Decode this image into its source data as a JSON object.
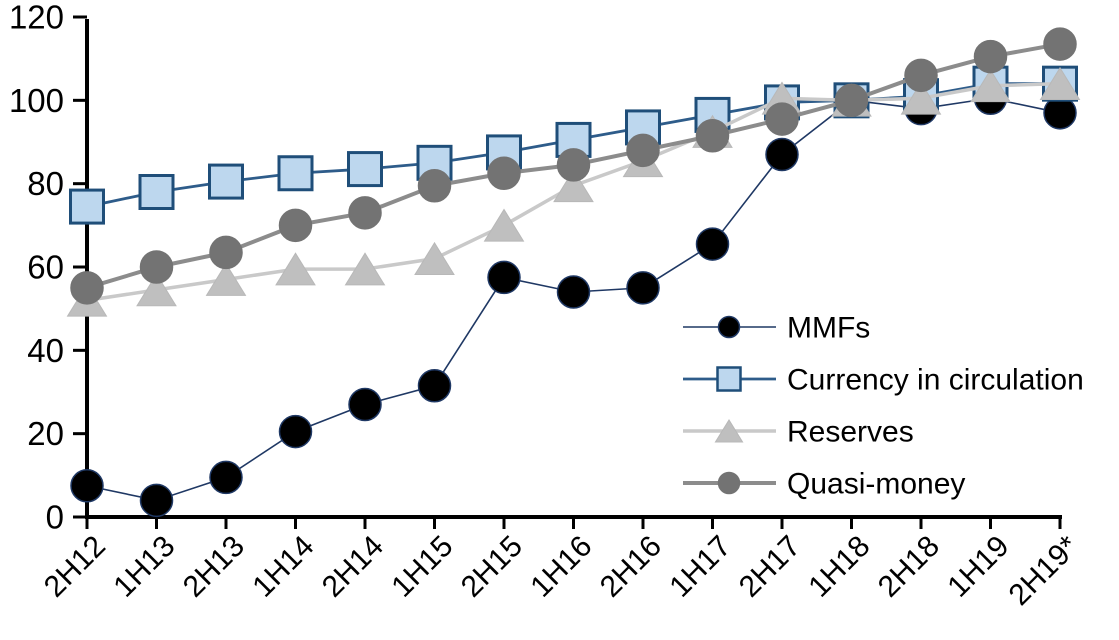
{
  "chart_data": {
    "type": "line",
    "title": "",
    "xlabel": "",
    "ylabel": "",
    "grid": "off",
    "background": "#FFFFFF",
    "axis_color": "#000000",
    "ylim": [
      0,
      120
    ],
    "ytick_step": 20,
    "y_tick_labels": [
      "0",
      "20",
      "40",
      "60",
      "80",
      "100",
      "120"
    ],
    "categories": [
      "2H12",
      "1H13",
      "2H13",
      "1H14",
      "2H14",
      "1H15",
      "2H15",
      "1H16",
      "2H16",
      "1H17",
      "2H17",
      "1H18",
      "2H18",
      "1H19",
      "2H19*"
    ],
    "legend_position": "inside-right",
    "series": [
      {
        "name": "MMFs",
        "marker": "circle",
        "marker_fill": "#000000",
        "marker_stroke": "#1F3864",
        "line_color": "#1F3864",
        "line_width": 1.6,
        "values": [
          7.5,
          4,
          9.5,
          20.5,
          27,
          31.5,
          57.5,
          54,
          55,
          65.5,
          87,
          100,
          98,
          100.5,
          97
        ]
      },
      {
        "name": "Currency in circulation",
        "marker": "square",
        "marker_fill": "#BDD7EE",
        "marker_stroke": "#1F4E79",
        "line_color": "#2E5C8A",
        "line_width": 2.8,
        "values": [
          74.5,
          78,
          80.5,
          82.5,
          83.5,
          85,
          87.5,
          90.5,
          93.5,
          96.5,
          99.5,
          100,
          101,
          104,
          104
        ]
      },
      {
        "name": "Reserves",
        "marker": "triangle",
        "marker_fill": "#BFBFBF",
        "marker_stroke": "#B8B8B8",
        "line_color": "#C9C9C9",
        "line_width": 3.5,
        "values": [
          52,
          54.5,
          57,
          59.5,
          59.5,
          62,
          70,
          79.5,
          85.5,
          92.5,
          100.5,
          100,
          100.5,
          103.5,
          104
        ]
      },
      {
        "name": "Quasi-money",
        "marker": "circle",
        "marker_fill": "#737373",
        "marker_stroke": "#737373",
        "line_color": "#8C8C8C",
        "line_width": 4,
        "values": [
          55,
          60,
          63.5,
          70,
          73,
          79.5,
          82.5,
          84.5,
          88,
          91.5,
          95.5,
          100,
          106,
          110.5,
          113.5
        ]
      }
    ]
  }
}
